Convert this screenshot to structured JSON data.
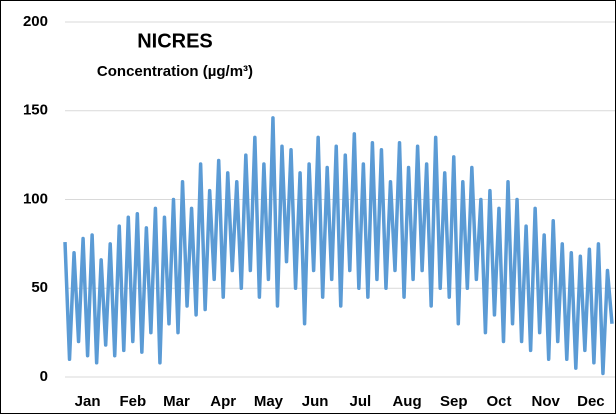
{
  "chart_data": {
    "type": "line",
    "title": "NICRES",
    "subtitle": "Concentration (µg/m³)",
    "x": [
      0,
      3,
      6,
      9,
      12,
      15,
      18,
      21,
      24,
      27,
      30,
      33,
      36,
      39,
      42,
      45,
      48,
      51,
      54,
      57,
      60,
      63,
      66,
      69,
      72,
      75,
      78,
      81,
      84,
      87,
      90,
      93,
      96,
      99,
      102,
      105,
      108,
      111,
      114,
      117,
      120,
      123,
      126,
      129,
      132,
      135,
      138,
      141,
      144,
      147,
      150,
      153,
      156,
      159,
      162,
      165,
      168,
      171,
      174,
      177,
      180,
      183,
      186,
      189,
      192,
      195,
      198,
      201,
      204,
      207,
      210,
      213,
      216,
      219,
      222,
      225,
      228,
      231,
      234,
      237,
      240,
      243,
      246,
      249,
      252,
      255,
      258,
      261,
      264,
      267,
      270,
      273,
      276,
      279,
      282,
      285,
      288,
      291,
      294,
      297,
      300,
      303,
      306,
      309,
      312,
      315,
      318,
      321,
      324,
      327,
      330,
      333,
      336,
      339,
      342,
      345,
      348,
      351,
      354,
      357,
      360,
      363
    ],
    "series": [
      {
        "name": "NICRES",
        "color": "#5b9bd5",
        "values": [
          76,
          10,
          70,
          20,
          78,
          12,
          80,
          8,
          66,
          18,
          75,
          12,
          85,
          15,
          90,
          20,
          92,
          14,
          84,
          25,
          95,
          8,
          90,
          30,
          100,
          25,
          110,
          40,
          95,
          35,
          120,
          38,
          105,
          55,
          122,
          45,
          115,
          60,
          110,
          50,
          125,
          60,
          135,
          45,
          120,
          55,
          146,
          40,
          130,
          65,
          128,
          50,
          115,
          30,
          120,
          60,
          135,
          45,
          118,
          55,
          130,
          40,
          125,
          60,
          137,
          50,
          120,
          45,
          132,
          55,
          128,
          50,
          110,
          60,
          132,
          45,
          118,
          55,
          130,
          60,
          120,
          40,
          135,
          50,
          115,
          45,
          124,
          30,
          110,
          50,
          118,
          55,
          100,
          25,
          105,
          35,
          95,
          20,
          110,
          30,
          100,
          20,
          85,
          15,
          95,
          25,
          80,
          10,
          88,
          20,
          75,
          10,
          70,
          5,
          68,
          15,
          72,
          8,
          75,
          2,
          60,
          30
        ]
      }
    ],
    "xlim": [
      0,
      365
    ],
    "xticks": [
      {
        "value": 15,
        "label": "Jan"
      },
      {
        "value": 45,
        "label": "Feb"
      },
      {
        "value": 74,
        "label": "Mar"
      },
      {
        "value": 105,
        "label": "Apr"
      },
      {
        "value": 135,
        "label": "May"
      },
      {
        "value": 166,
        "label": "Jun"
      },
      {
        "value": 196,
        "label": "Jul"
      },
      {
        "value": 227,
        "label": "Aug"
      },
      {
        "value": 258,
        "label": "Sep"
      },
      {
        "value": 288,
        "label": "Oct"
      },
      {
        "value": 319,
        "label": "Nov"
      },
      {
        "value": 349,
        "label": "Dec"
      }
    ],
    "ylim": [
      0,
      200
    ],
    "yticks": [
      0,
      50,
      100,
      150,
      200
    ],
    "grid": true
  }
}
